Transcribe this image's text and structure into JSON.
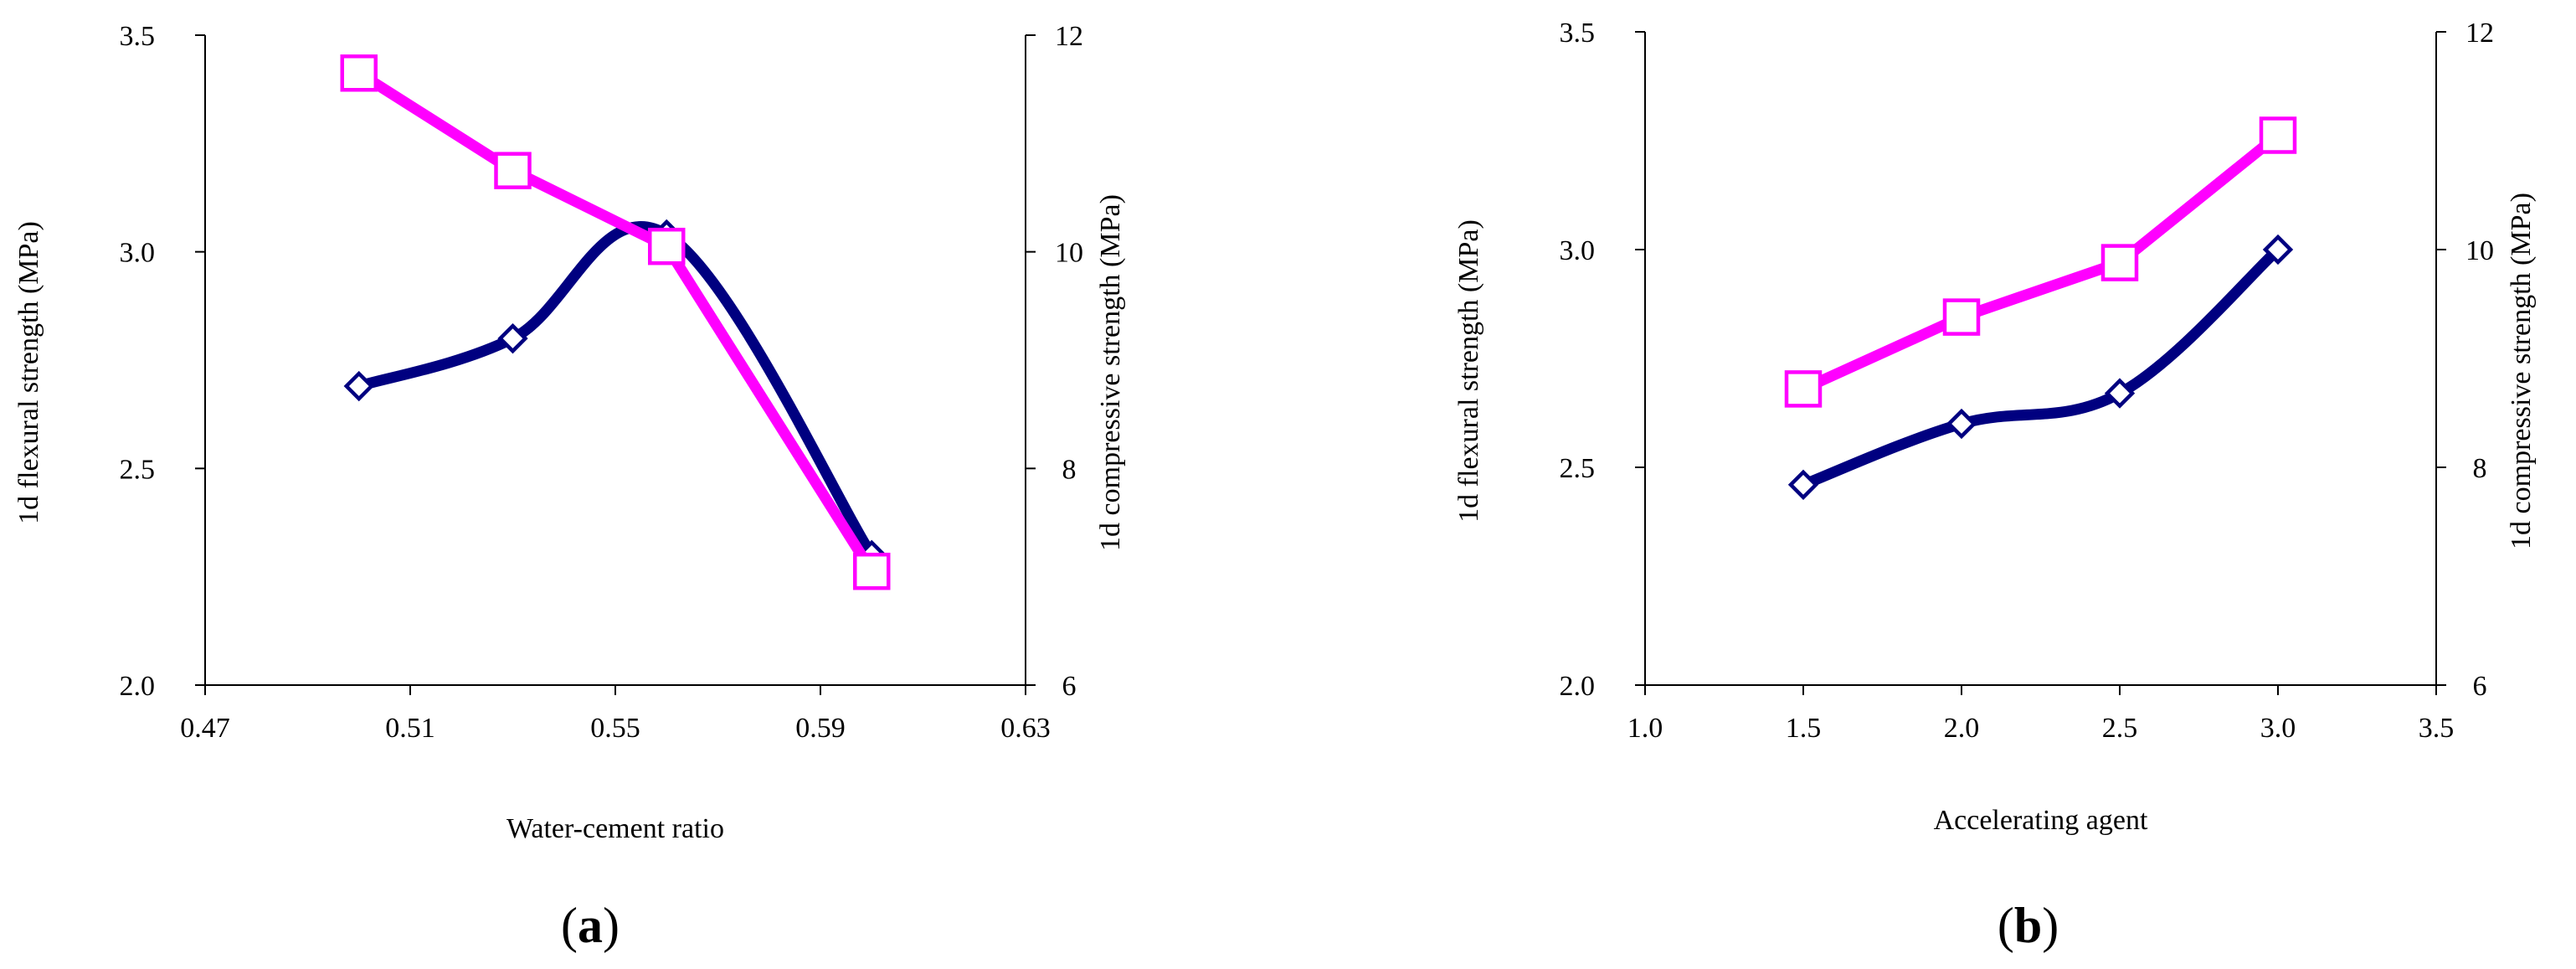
{
  "colors": {
    "flexural": "#000080",
    "compressive": "#ff00ff",
    "axis": "#000000",
    "marker_fill": "#ffffff"
  },
  "chart_data": [
    {
      "type": "line",
      "panel_label": "a",
      "xlabel": "Water-cement ratio",
      "ylabel_left": "1d flexural  strength (MPa)",
      "ylabel_right": "1d compressive  strength  (MPa)",
      "xlim": [
        0.47,
        0.63
      ],
      "ylim_left": [
        2.0,
        3.5
      ],
      "ylim_right": [
        6,
        12
      ],
      "x_ticks": [
        0.47,
        0.51,
        0.55,
        0.59,
        0.63
      ],
      "x_tick_labels": [
        "0.47",
        "0.51",
        "0.55",
        "0.59",
        "0.63"
      ],
      "y_left_ticks": [
        2.0,
        2.5,
        3.0,
        3.5
      ],
      "y_left_tick_labels": [
        "2.0",
        "2.5",
        "3.0",
        "3.5"
      ],
      "y_right_ticks": [
        6,
        8,
        10,
        12
      ],
      "y_right_tick_labels": [
        "6",
        "8",
        "10",
        "12"
      ],
      "smooth_first_series": true,
      "series": [
        {
          "axis": "left",
          "marker": "diamond",
          "x": [
            0.5,
            0.53,
            0.56,
            0.6
          ],
          "values": [
            2.69,
            2.8,
            3.04,
            2.3
          ]
        },
        {
          "axis": "right",
          "marker": "square",
          "x": [
            0.5,
            0.53,
            0.56,
            0.6
          ],
          "values": [
            11.65,
            10.75,
            10.05,
            7.05
          ]
        }
      ]
    },
    {
      "type": "line",
      "panel_label": "b",
      "xlabel": "Accelerating  agent",
      "ylabel_left": "1d flexural  strength (MPa)",
      "ylabel_right": "1d compressive  strength  (MPa)",
      "xlim": [
        1.0,
        3.5
      ],
      "ylim_left": [
        2.0,
        3.5
      ],
      "ylim_right": [
        6,
        12
      ],
      "x_ticks": [
        1.0,
        1.5,
        2.0,
        2.5,
        3.0,
        3.5
      ],
      "x_tick_labels": [
        "1.0",
        "1.5",
        "2.0",
        "2.5",
        "3.0",
        "3.5"
      ],
      "y_left_ticks": [
        2.0,
        2.5,
        3.0,
        3.5
      ],
      "y_left_tick_labels": [
        "2.0",
        "2.5",
        "3.0",
        "3.5"
      ],
      "y_right_ticks": [
        6,
        8,
        10,
        12
      ],
      "y_right_tick_labels": [
        "6",
        "8",
        "10",
        "12"
      ],
      "smooth_first_series": true,
      "series": [
        {
          "axis": "left",
          "marker": "diamond",
          "x": [
            1.5,
            2.0,
            2.5,
            3.0
          ],
          "values": [
            2.46,
            2.6,
            2.67,
            3.0
          ]
        },
        {
          "axis": "right",
          "marker": "square",
          "x": [
            1.5,
            2.0,
            2.5,
            3.0
          ],
          "values": [
            8.72,
            9.38,
            9.88,
            11.05
          ]
        }
      ]
    }
  ]
}
